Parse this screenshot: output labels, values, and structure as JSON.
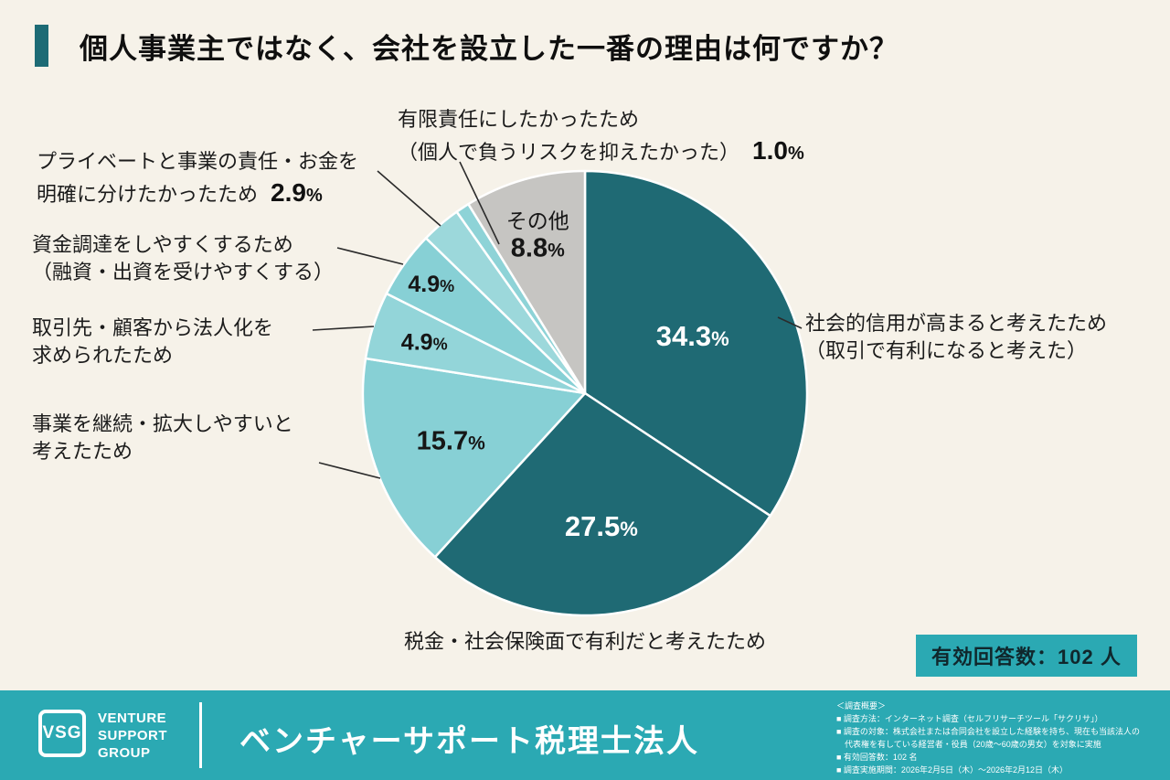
{
  "page": {
    "title": "個人事業主ではなく、会社を設立した一番の理由は何ですか？",
    "background_color": "#f6f2e9",
    "accent_color": "#1d6b75"
  },
  "chart_data": {
    "type": "pie",
    "title": "個人事業主ではなく、会社を設立した一番の理由は何ですか？",
    "unit": "%",
    "start_angle_deg": 0,
    "direction": "clockwise",
    "sample_size": 102,
    "legend": "none",
    "slices": [
      {
        "label": "社会的信用が高まると考えたため（取引で有利になると考えた）",
        "value": 34.3,
        "color": "#1f6a74",
        "text_color": "#ffffff",
        "label_f": 0.55,
        "label_size": 31
      },
      {
        "label": "税金・社会保険面で有利だと考えたため",
        "value": 27.5,
        "color": "#1f6a74",
        "text_color": "#ffffff",
        "label_f": 0.6,
        "label_size": 31
      },
      {
        "label": "事業を継続・拡大しやすいと考えたため",
        "value": 15.7,
        "color": "#87d0d5",
        "text_color": "#161616",
        "label_f": 0.64,
        "label_size": 29
      },
      {
        "label": "取引先・顧客から法人化を求められたため",
        "value": 4.9,
        "color": "#93d5d9",
        "text_color": "#161616",
        "label_f": 0.76,
        "label_size": 25
      },
      {
        "label": "資金調達をしやすくするため（融資・出資を受けやすくする）",
        "value": 4.9,
        "color": "#87d0d5",
        "text_color": "#161616",
        "label_f": 0.85,
        "label_size": 25
      },
      {
        "label": "プライベートと事業の責任・お金を明確に分けたかったため",
        "value": 2.9,
        "color": "#9cd8db"
      },
      {
        "label": "有限責任にしたかったため（個人で負うリスクを抑えたかった）",
        "value": 1.0,
        "color": "#8ed3d7"
      },
      {
        "label": "その他",
        "value": 8.8,
        "color": "#c6c5c2",
        "text_color": "#161616",
        "label_f": 0.78,
        "label_size": 29,
        "show_name_inside": true
      }
    ]
  },
  "labels": {
    "limited_liability": {
      "text": "有限責任にしたかったため\n（個人で負うリスクを抑えたかった）",
      "num": "1.0"
    },
    "private_split": {
      "text": "プライベートと事業の責任・お金を\n明確に分けたかったため",
      "num": "2.9"
    },
    "funding": {
      "text": "資金調達をしやすくするため\n（融資・出資を受けやすくする）"
    },
    "clients": {
      "text": "取引先・顧客から法人化を\n求められたため"
    },
    "expand": {
      "text": "事業を継続・拡大しやすいと\n考えたため"
    },
    "trust": {
      "text": "社会的信用が高まると考えたため\n（取引で有利になると考えた）"
    },
    "tax": {
      "text": "税金・社会保険面で有利だと考えたため"
    }
  },
  "badge": {
    "label": "有効回答数：102 人",
    "bg": "#2ba9b3"
  },
  "footer": {
    "bg": "#2ba9b3",
    "logo_acronym": "VSG",
    "logo_text": "VENTURE\nSUPPORT\nGROUP",
    "company": "ベンチャーサポート税理士法人",
    "survey": "＜調査概要＞\n■ 調査方法：インターネット調査（セルフリサーチツール「サクリサ」）\n■ 調査の対象：株式会社または合同会社を設立した経験を持ち、現在も当該法人の\n　代表権を有している経営者・役員（20歳～60歳の男女）を対象に実施\n■ 有効回答数：102 名\n■ 調査実施期間：2026年2月5日（木）～2026年2月12日（木）"
  }
}
